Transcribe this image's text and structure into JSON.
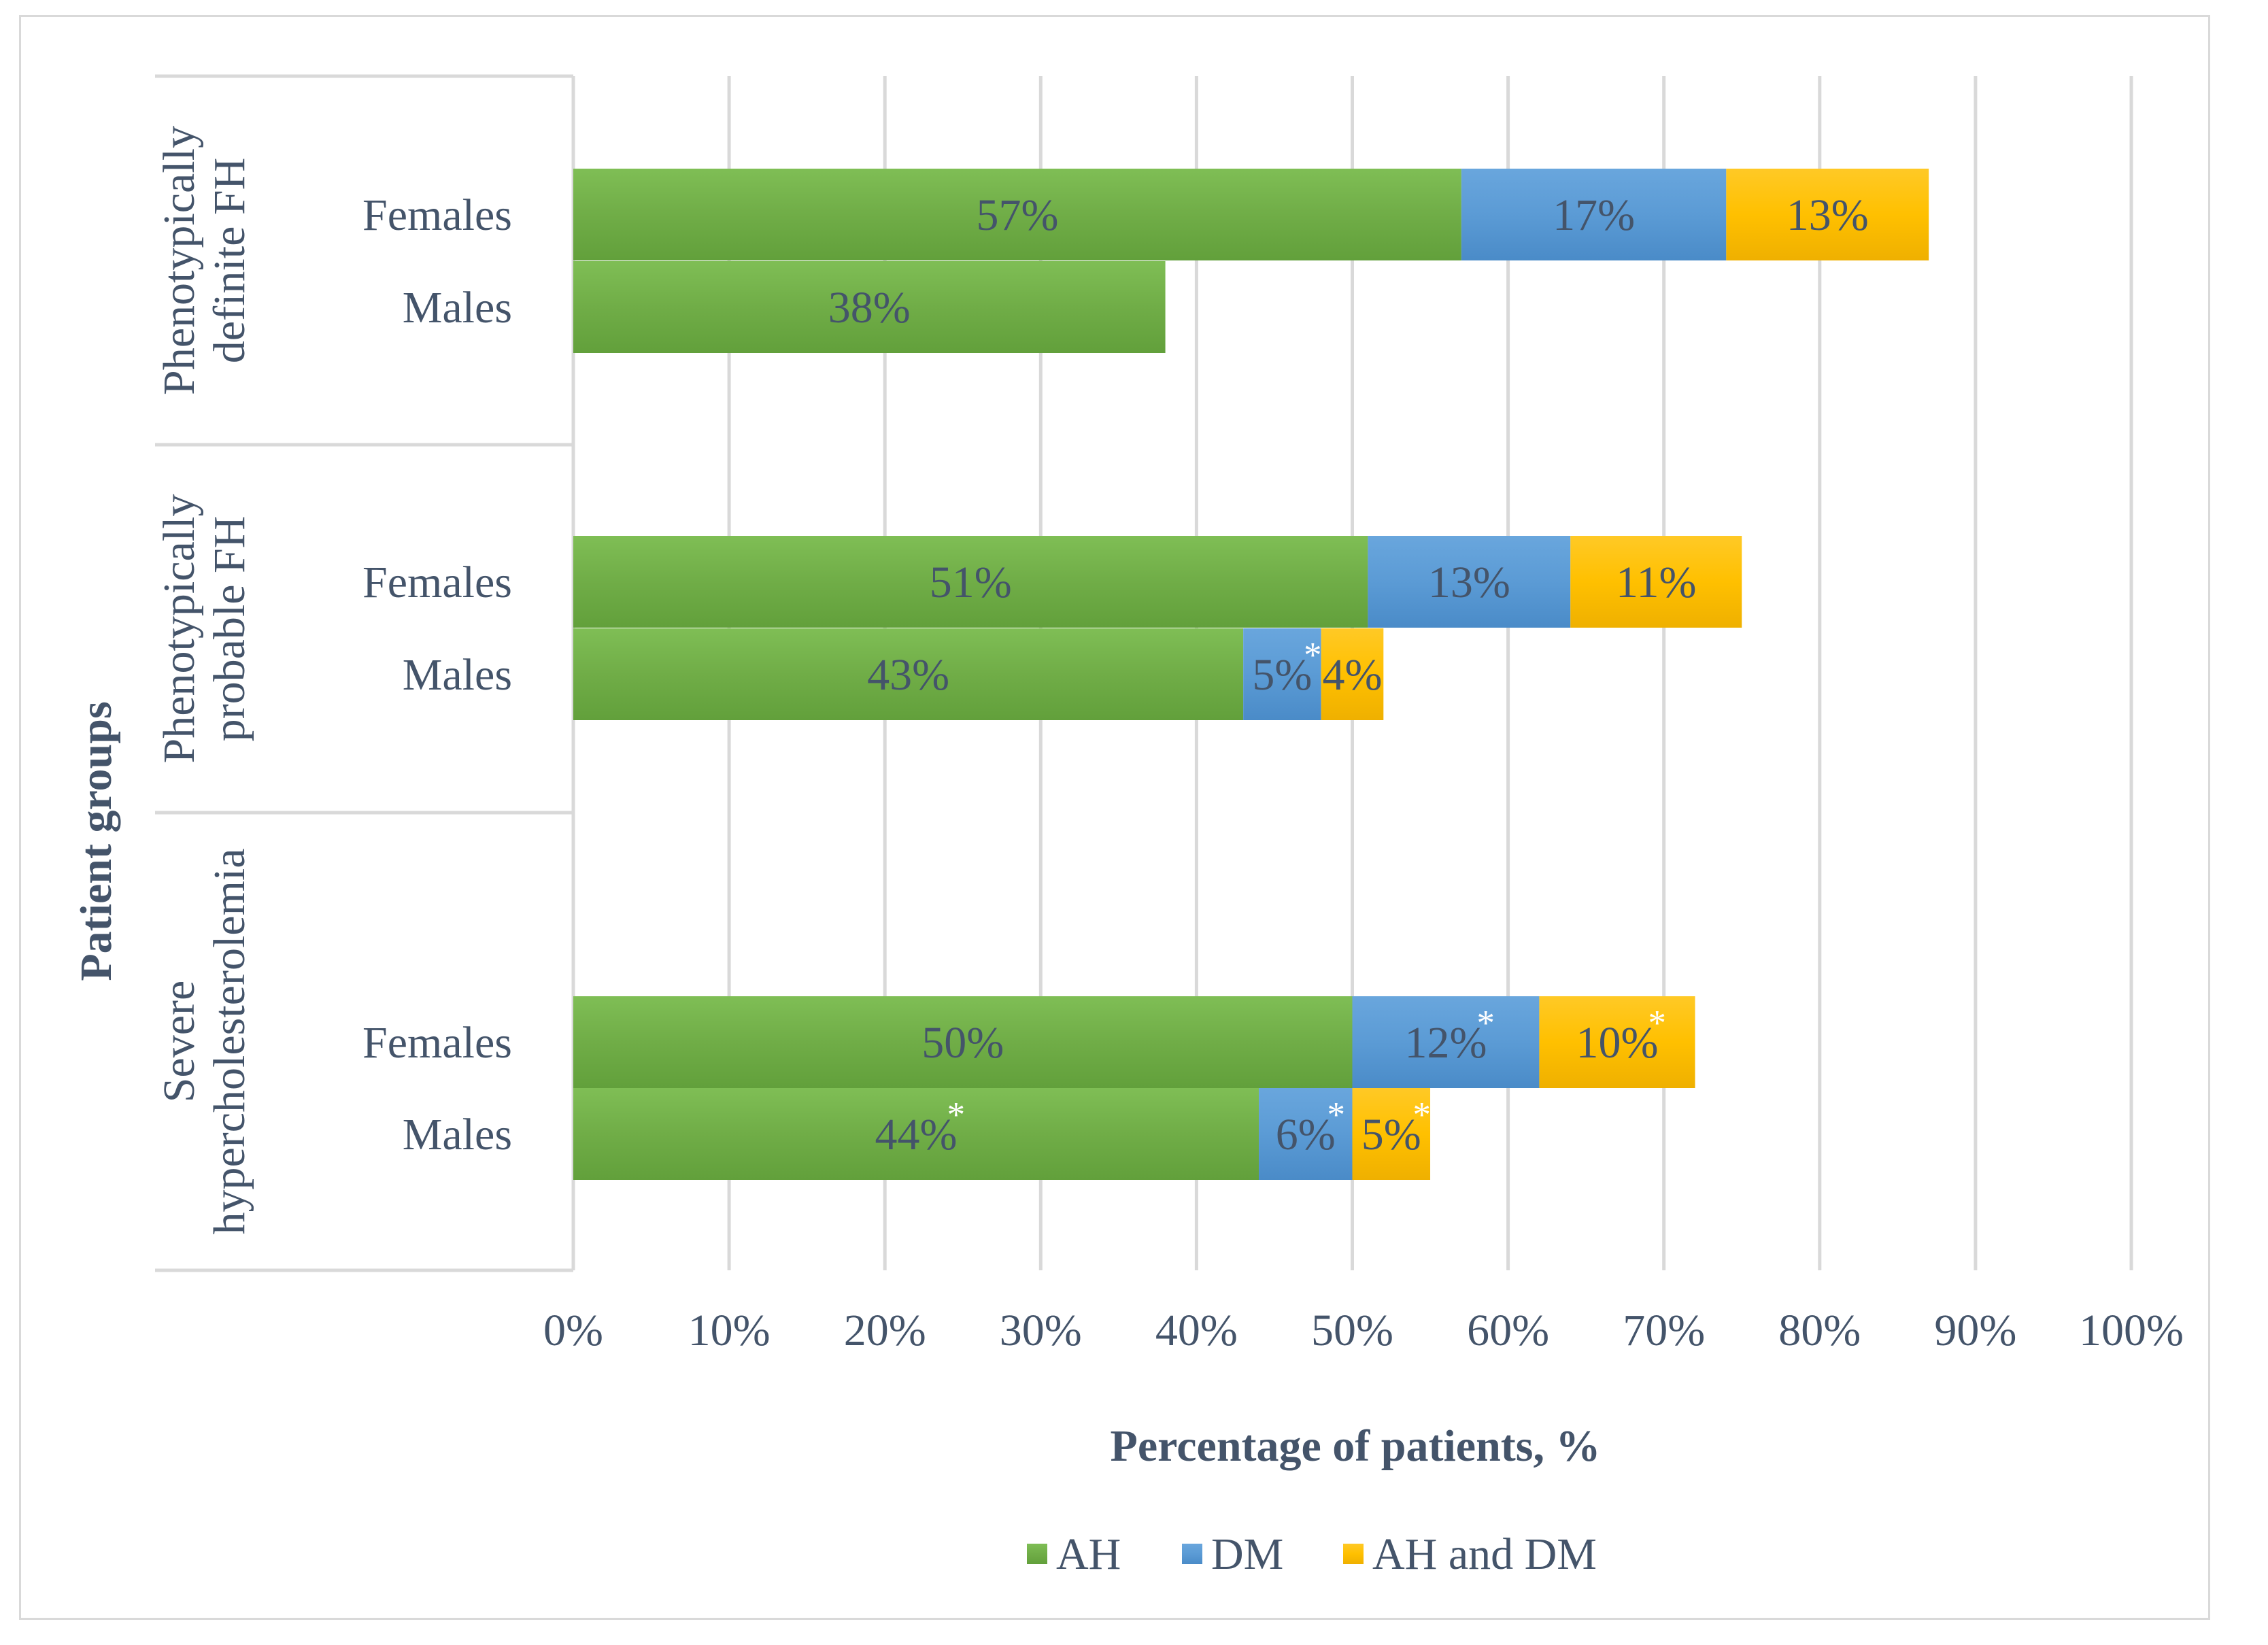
{
  "chart_data": {
    "type": "bar",
    "orientation": "horizontal",
    "stacked": true,
    "title": "",
    "xlabel": "Percentage of patients, %",
    "ylabel": "Patient groups",
    "xlim": [
      0,
      100
    ],
    "x_ticks": [
      "0%",
      "10%",
      "20%",
      "30%",
      "40%",
      "50%",
      "60%",
      "70%",
      "80%",
      "90%",
      "100%"
    ],
    "grid": "vertical",
    "legend_position": "bottom",
    "colors": {
      "AH": "#70ad47",
      "DM": "#5b9bd5",
      "AH and DM": "#ffc000",
      "text": "#44546a",
      "grid": "#d9d9d9",
      "asterisk": "#ffffff"
    },
    "series_names": [
      "AH",
      "DM",
      "AH and DM"
    ],
    "groups": [
      {
        "name": "Phenotypically definite FH",
        "rows": [
          {
            "label": "Females",
            "values": [
              57,
              17,
              13
            ],
            "labels": [
              "57%",
              "17%",
              "13%"
            ],
            "asterisk": [
              false,
              false,
              false
            ]
          },
          {
            "label": "Males",
            "values": [
              38,
              0,
              0
            ],
            "labels": [
              "38%",
              "",
              ""
            ],
            "asterisk": [
              false,
              false,
              false
            ]
          }
        ]
      },
      {
        "name": "Phenotypically probable FH",
        "rows": [
          {
            "label": "Females",
            "values": [
              51,
              13,
              11
            ],
            "labels": [
              "51%",
              "13%",
              "11%"
            ],
            "asterisk": [
              false,
              false,
              false
            ]
          },
          {
            "label": "Males",
            "values": [
              43,
              5,
              4
            ],
            "labels": [
              "43%",
              "5%",
              "4%"
            ],
            "asterisk": [
              false,
              true,
              false
            ]
          }
        ]
      },
      {
        "name": "Severe hypercholesterolemia",
        "rows": [
          {
            "label": "Females",
            "values": [
              50,
              12,
              10
            ],
            "labels": [
              "50%",
              "12%",
              "10%"
            ],
            "asterisk": [
              false,
              true,
              true
            ]
          },
          {
            "label": "Males",
            "values": [
              44,
              6,
              5
            ],
            "labels": [
              "44%",
              "6%",
              "5%"
            ],
            "asterisk": [
              true,
              true,
              true
            ]
          }
        ]
      }
    ],
    "asterisk_symbol": "*"
  }
}
